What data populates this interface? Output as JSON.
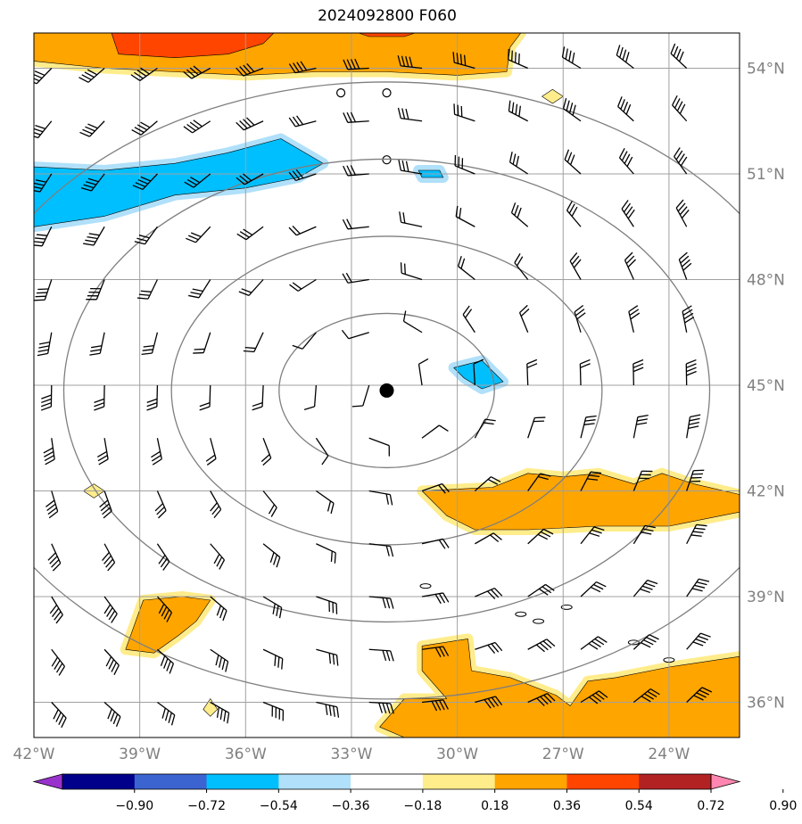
{
  "chart_data": {
    "type": "map",
    "title": "2024092800 F060",
    "x_ticks": [
      {
        "value": -42,
        "label": "42°W"
      },
      {
        "value": -39,
        "label": "39°W"
      },
      {
        "value": -36,
        "label": "36°W"
      },
      {
        "value": -33,
        "label": "33°W"
      },
      {
        "value": -30,
        "label": "30°W"
      },
      {
        "value": -27,
        "label": "27°W"
      },
      {
        "value": -24,
        "label": "24°W"
      }
    ],
    "y_ticks": [
      {
        "value": 54,
        "label": "54°N"
      },
      {
        "value": 51,
        "label": "51°N"
      },
      {
        "value": 48,
        "label": "48°N"
      },
      {
        "value": 45,
        "label": "45°N"
      },
      {
        "value": 42,
        "label": "42°N"
      },
      {
        "value": 39,
        "label": "39°N"
      },
      {
        "value": 36,
        "label": "36°N"
      }
    ],
    "lon_range": [
      -42,
      -22
    ],
    "lat_range": [
      35.0,
      55.0
    ],
    "grid": true,
    "colorbar": {
      "levels": [
        "−0.90",
        "−0.72",
        "−0.54",
        "−0.36",
        "−0.18",
        "0.18",
        "0.36",
        "0.54",
        "0.72",
        "0.90"
      ],
      "colors": [
        "#9932cc",
        "#00008b",
        "#3c64d0",
        "#00bfff",
        "#b0e0fa",
        "#ffffff",
        "#ffec8b",
        "#ffa500",
        "#ff4500",
        "#b22222",
        "#ff86b0"
      ],
      "extend": "both"
    },
    "center_marker": {
      "lon": -32.0,
      "lat": 44.85
    },
    "range_rings_deg": [
      2.7,
      5.4,
      8.1,
      10.8
    ],
    "regions": [
      {
        "name": "positive-north",
        "level": 0.36,
        "points": [
          [
            -42,
            55
          ],
          [
            -42,
            54.2
          ],
          [
            -40,
            54.0
          ],
          [
            -38,
            53.9
          ],
          [
            -36,
            53.8
          ],
          [
            -34,
            53.9
          ],
          [
            -32,
            53.9
          ],
          [
            -30,
            53.8
          ],
          [
            -28.6,
            53.9
          ],
          [
            -28.5,
            54.6
          ],
          [
            -28.2,
            55
          ]
        ]
      },
      {
        "name": "positive-north-core",
        "level": 0.54,
        "points": [
          [
            -39.8,
            55
          ],
          [
            -39.6,
            54.4
          ],
          [
            -38,
            54.3
          ],
          [
            -36.5,
            54.4
          ],
          [
            -35.5,
            54.7
          ],
          [
            -35.2,
            55
          ]
        ]
      },
      {
        "name": "positive-north-core-2",
        "level": 0.54,
        "points": [
          [
            -32.8,
            55
          ],
          [
            -32.5,
            54.9
          ],
          [
            -31.5,
            54.9
          ],
          [
            -31.2,
            55
          ]
        ]
      },
      {
        "name": "negative-west",
        "level": -0.36,
        "points": [
          [
            -42,
            51.2
          ],
          [
            -40,
            51.1
          ],
          [
            -38,
            51.3
          ],
          [
            -36.5,
            51.6
          ],
          [
            -35,
            52.0
          ],
          [
            -33.8,
            51.3
          ],
          [
            -34.5,
            50.9
          ],
          [
            -36,
            50.6
          ],
          [
            -38,
            50.4
          ],
          [
            -40,
            49.8
          ],
          [
            -42,
            49.5
          ]
        ]
      },
      {
        "name": "negative-center",
        "level": -0.36,
        "points": [
          [
            -30.1,
            45.5
          ],
          [
            -29.3,
            45.7
          ],
          [
            -28.7,
            45.1
          ],
          [
            -29.3,
            44.9
          ],
          [
            -29.8,
            45.2
          ]
        ]
      },
      {
        "name": "negative-small",
        "level": -0.36,
        "points": [
          [
            -31.1,
            51.1
          ],
          [
            -30.5,
            51.1
          ],
          [
            -30.4,
            50.9
          ],
          [
            -31.0,
            50.9
          ]
        ]
      },
      {
        "name": "positive-east-42",
        "level": 0.36,
        "points": [
          [
            -31.0,
            42.0
          ],
          [
            -29.0,
            42.1
          ],
          [
            -28.0,
            42.5
          ],
          [
            -27.0,
            42.4
          ],
          [
            -26.0,
            42.5
          ],
          [
            -25.0,
            42.2
          ],
          [
            -24.2,
            42.5
          ],
          [
            -23.3,
            42.2
          ],
          [
            -22.0,
            41.9
          ],
          [
            -22.0,
            41.4
          ],
          [
            -24.0,
            41.0
          ],
          [
            -26.0,
            41.0
          ],
          [
            -28.0,
            40.9
          ],
          [
            -29.5,
            40.9
          ],
          [
            -30.3,
            41.3
          ]
        ]
      },
      {
        "name": "positive-southeast",
        "level": 0.36,
        "points": [
          [
            -22.0,
            37.3
          ],
          [
            -24.0,
            37.0
          ],
          [
            -25.5,
            36.7
          ],
          [
            -26.3,
            36.6
          ],
          [
            -26.8,
            35.9
          ],
          [
            -27.2,
            36.2
          ],
          [
            -28.5,
            36.7
          ],
          [
            -29.6,
            36.9
          ],
          [
            -29.7,
            37.8
          ],
          [
            -31.0,
            37.6
          ],
          [
            -31.0,
            36.9
          ],
          [
            -30.3,
            36.1
          ],
          [
            -31.5,
            36.1
          ],
          [
            -32.2,
            35.3
          ],
          [
            -31.5,
            35.0
          ],
          [
            -22.0,
            35.0
          ]
        ]
      },
      {
        "name": "positive-west-39",
        "level": 0.36,
        "points": [
          [
            -39.4,
            37.5
          ],
          [
            -38.9,
            38.9
          ],
          [
            -37.8,
            39.0
          ],
          [
            -37.0,
            38.9
          ],
          [
            -37.4,
            38.3
          ],
          [
            -37.9,
            37.9
          ],
          [
            -38.6,
            37.4
          ]
        ]
      },
      {
        "name": "positive-dot-a",
        "level": 0.18,
        "points": [
          [
            -40.6,
            42.0
          ],
          [
            -40.3,
            42.2
          ],
          [
            -40.0,
            42.0
          ],
          [
            -40.3,
            41.8
          ]
        ]
      },
      {
        "name": "positive-dot-b",
        "level": 0.18,
        "points": [
          [
            -37.2,
            35.8
          ],
          [
            -37.0,
            36.1
          ],
          [
            -36.8,
            35.8
          ],
          [
            -37.0,
            35.6
          ]
        ]
      },
      {
        "name": "positive-dot-c",
        "level": 0.18,
        "points": [
          [
            -27.6,
            53.2
          ],
          [
            -27.3,
            53.4
          ],
          [
            -27.0,
            53.2
          ],
          [
            -27.3,
            53.0
          ]
        ]
      }
    ]
  }
}
